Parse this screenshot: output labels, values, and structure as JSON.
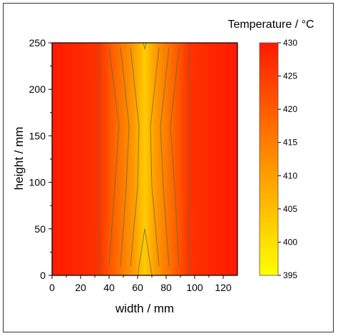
{
  "chart_data": {
    "type": "heatmap",
    "title": "",
    "xlabel": "width / mm",
    "ylabel": "height / mm",
    "xlim": [
      0,
      130
    ],
    "ylim": [
      0,
      250
    ],
    "x_ticks": [
      0,
      20,
      40,
      60,
      80,
      100,
      120
    ],
    "y_ticks": [
      0,
      50,
      100,
      150,
      200,
      250
    ],
    "colorbar": {
      "title": "Temperature / °C",
      "min": 395,
      "max": 430,
      "ticks": [
        395,
        400,
        405,
        410,
        415,
        420,
        425,
        430
      ],
      "color_low": "#ffff00",
      "color_mid": "#ff9900",
      "color_high": "#ff1a00"
    },
    "hot_region": {
      "x_min": 33,
      "x_max": 96,
      "center_x": 65
    },
    "contours": [
      {
        "level": 425,
        "points": [
          [
            33,
            0
          ],
          [
            33,
            250
          ]
        ]
      },
      {
        "level": 425,
        "points": [
          [
            96,
            0
          ],
          [
            96,
            250
          ]
        ]
      },
      {
        "level": 420,
        "points": [
          [
            40,
            10
          ],
          [
            44,
            95
          ],
          [
            47,
            160
          ],
          [
            40,
            245
          ]
        ]
      },
      {
        "level": 420,
        "points": [
          [
            89,
            10
          ],
          [
            86,
            95
          ],
          [
            83,
            160
          ],
          [
            89,
            245
          ]
        ]
      },
      {
        "level": 415,
        "points": [
          [
            48,
            10
          ],
          [
            52,
            95
          ],
          [
            54,
            160
          ],
          [
            48,
            245
          ]
        ]
      },
      {
        "level": 415,
        "points": [
          [
            82,
            10
          ],
          [
            78,
            95
          ],
          [
            76,
            160
          ],
          [
            82,
            245
          ]
        ]
      },
      {
        "level": 410,
        "points": [
          [
            55,
            10
          ],
          [
            60,
            95
          ],
          [
            61,
            160
          ],
          [
            55,
            245
          ]
        ]
      },
      {
        "level": 410,
        "points": [
          [
            75,
            10
          ],
          [
            70,
            95
          ],
          [
            69,
            160
          ],
          [
            75,
            245
          ]
        ]
      },
      {
        "level": 405,
        "points": [
          [
            60,
            0
          ],
          [
            65,
            50
          ],
          [
            70,
            0
          ]
        ]
      },
      {
        "level": 405,
        "points": [
          [
            64,
            250
          ],
          [
            65,
            243
          ],
          [
            66,
            250
          ]
        ]
      }
    ]
  }
}
